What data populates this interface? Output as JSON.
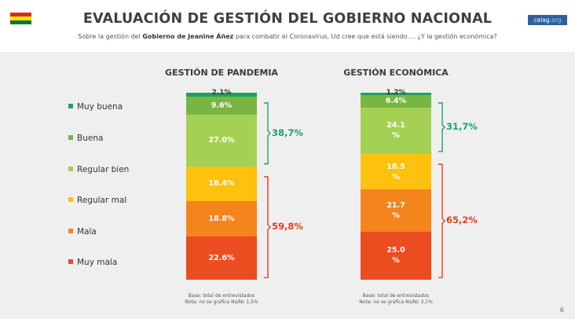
{
  "header": {
    "title": "EVALUACIÓN DE GESTIÓN DEL GOBIERNO NACIONAL",
    "subtitle_pre": "Sobre la gestión del ",
    "subtitle_bold": "Gobierno de Jeanine Áñez",
    "subtitle_post": " para combatir el Coronavirus, Ud cree que está siendo…. ¿Y la gestión económica?",
    "logo_main": "celag",
    "logo_suffix": ".org",
    "flag_colors": [
      "#d52b1e",
      "#f9e300",
      "#007934"
    ]
  },
  "legend": [
    {
      "label": "Muy buena",
      "color": "#1ca361"
    },
    {
      "label": "Buena",
      "color": "#78b543"
    },
    {
      "label": "Regular bien",
      "color": "#a4d153"
    },
    {
      "label": "Regular mal",
      "color": "#fdc10e"
    },
    {
      "label": "Mala",
      "color": "#f4841c"
    },
    {
      "label": "Muy mala",
      "color": "#eb4c20"
    }
  ],
  "chart_data": [
    {
      "type": "bar",
      "stacked": true,
      "title": "GESTIÓN DE PANDEMIA",
      "categories": [
        "Muy buena",
        "Buena",
        "Regular bien",
        "Regular mal",
        "Mala",
        "Muy mala"
      ],
      "values": [
        2.1,
        9.6,
        27.0,
        18.4,
        18.8,
        22.6
      ],
      "labels": [
        "2.1%",
        "9.6%",
        "27.0%",
        "18.4%",
        "18.8%",
        "22.6%"
      ],
      "groups": [
        {
          "label": "38,7%",
          "from": 0,
          "to": 2,
          "color": "#1ca361"
        },
        {
          "label": "59,8%",
          "from": 3,
          "to": 5,
          "color": "#e2401d"
        }
      ],
      "note": [
        "Base: total de entrevistados",
        "Nota: no se grafica Ns/Nc 1,5%"
      ]
    },
    {
      "type": "bar",
      "stacked": true,
      "title": "GESTIÓN ECONÓMICA",
      "categories": [
        "Muy buena",
        "Buena",
        "Regular bien",
        "Regular mal",
        "Mala",
        "Muy mala"
      ],
      "values": [
        1.2,
        6.4,
        24.1,
        18.5,
        21.7,
        25.0
      ],
      "labels": [
        "1.2%",
        "6.4%",
        "24.1\n%",
        "18.5\n%",
        "21.7\n%",
        "25.0\n%"
      ],
      "groups": [
        {
          "label": "31,7%",
          "from": 0,
          "to": 2,
          "color": "#1ca361"
        },
        {
          "label": "65,2%",
          "from": 3,
          "to": 5,
          "color": "#e2401d"
        }
      ],
      "note": [
        "Base: total de entrevistados",
        "Nota: no se grafica Ns/Nc 3,1%"
      ]
    }
  ],
  "page_number": "6"
}
